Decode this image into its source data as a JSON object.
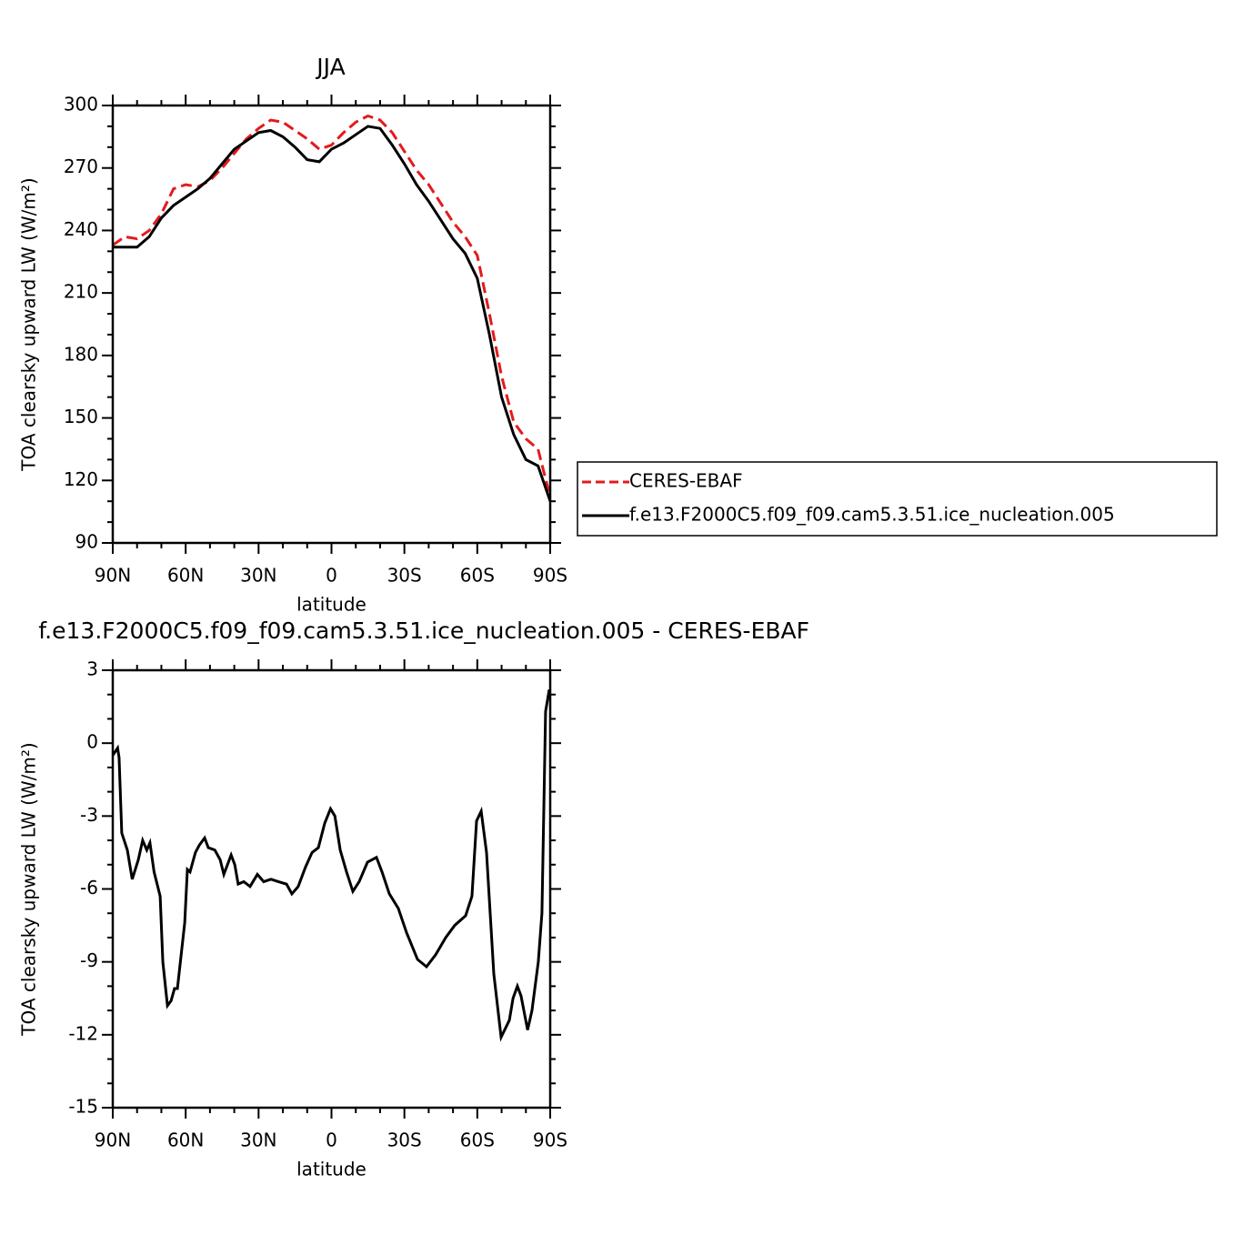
{
  "chart_data": [
    {
      "type": "line",
      "title": "JJA",
      "xlabel": "latitude",
      "ylabel": "TOA clearsky upward LW (W/m²)",
      "x": [
        90,
        85,
        80,
        75,
        70,
        65,
        60,
        55,
        50,
        45,
        40,
        35,
        30,
        25,
        20,
        15,
        10,
        5,
        0,
        -5,
        -10,
        -15,
        -20,
        -25,
        -30,
        -35,
        -40,
        -45,
        -50,
        -55,
        -60,
        -65,
        -70,
        -75,
        -80,
        -85,
        -90
      ],
      "series": [
        {
          "name": "CERES-EBAF",
          "color": "#e41a1c",
          "line_style": "dashed",
          "values": [
            233,
            237,
            236,
            240,
            248,
            260,
            262,
            261,
            264,
            270,
            277,
            284,
            289,
            293,
            292,
            288,
            284,
            279,
            281,
            287,
            292,
            295,
            293,
            287,
            278,
            269,
            262,
            253,
            244,
            237,
            228,
            200,
            170,
            148,
            140,
            135,
            112
          ]
        },
        {
          "name": "f.e13.F2000C5.f09_f09.cam5.3.51.ice_nucleation.005",
          "color": "#000000",
          "line_style": "solid",
          "values": [
            232,
            232,
            232,
            237,
            246,
            252,
            256,
            260,
            265,
            272,
            279,
            283,
            287,
            288,
            285,
            280,
            274,
            273,
            279,
            282,
            286,
            290,
            289,
            281,
            272,
            262,
            254,
            245,
            236,
            229,
            217,
            190,
            160,
            142,
            130,
            127,
            110
          ]
        }
      ],
      "xlim": [
        90,
        -90
      ],
      "xticks": [
        {
          "value": 90,
          "label": "90N"
        },
        {
          "value": 60,
          "label": "60N"
        },
        {
          "value": 30,
          "label": "30N"
        },
        0,
        {
          "value": -30,
          "label": "30S"
        },
        {
          "value": -60,
          "label": "60S"
        },
        {
          "value": -90,
          "label": "90S"
        }
      ],
      "ylim": [
        90,
        300
      ],
      "yticks": [
        90,
        120,
        150,
        180,
        210,
        240,
        270,
        300
      ]
    },
    {
      "type": "line",
      "title": "f.e13.F2000C5.f09_f09.cam5.3.51.ice_nucleation.005 - CERES-EBAF",
      "xlabel": "latitude",
      "ylabel": "TOA clearsky upward LW (W/m²)",
      "x": [
        90,
        88,
        87.4,
        86.3,
        84,
        82,
        79.5,
        77.7,
        76,
        74.7,
        73,
        70.5,
        69.4,
        67.5,
        66,
        64.6,
        63.4,
        60.4,
        59.3,
        58.2,
        56,
        54.4,
        52.2,
        50.7,
        48,
        45.8,
        44.3,
        41.3,
        39.8,
        38.4,
        36.1,
        33.5,
        30.5,
        27.9,
        24.9,
        21.9,
        18.5,
        16.3,
        13.7,
        10.7,
        8,
        5.4,
        2.8,
        0.4,
        -1.4,
        -3.6,
        -6.2,
        -8.8,
        -11.4,
        -14.8,
        -18.5,
        -20.8,
        -23.8,
        -27.5,
        -30.9,
        -35.4,
        -39.1,
        -42.9,
        -47,
        -50.7,
        -55.2,
        -57.8,
        -59.7,
        -61.6,
        -63.8,
        -66.8,
        -69.8,
        -73.2,
        -74.7,
        -76.5,
        -78,
        -80.7,
        -82.5,
        -85.1,
        -86.6,
        -88.1,
        -89.6
      ],
      "series": [
        {
          "color": "#000000",
          "line_style": "solid",
          "values": [
            -0.5,
            -0.2,
            -0.6,
            -3.7,
            -4.4,
            -5.6,
            -4.8,
            -4.0,
            -4.4,
            -4.1,
            -5.3,
            -6.3,
            -9.0,
            -10.8,
            -10.6,
            -10.1,
            -10.1,
            -7.4,
            -5.2,
            -5.3,
            -4.5,
            -4.2,
            -3.9,
            -4.3,
            -4.4,
            -4.8,
            -5.4,
            -4.6,
            -5.0,
            -5.8,
            -5.7,
            -5.9,
            -5.4,
            -5.7,
            -5.6,
            -5.7,
            -5.8,
            -6.2,
            -5.9,
            -5.1,
            -4.5,
            -4.3,
            -3.3,
            -2.7,
            -3.0,
            -4.4,
            -5.3,
            -6.1,
            -5.7,
            -4.9,
            -4.7,
            -5.3,
            -6.2,
            -6.8,
            -7.8,
            -8.9,
            -9.2,
            -8.7,
            -8.0,
            -7.5,
            -7.1,
            -6.3,
            -3.2,
            -2.8,
            -4.5,
            -9.5,
            -12.1,
            -11.4,
            -10.5,
            -10.0,
            -10.4,
            -11.8,
            -11.0,
            -9.0,
            -7.0,
            1.3,
            2.2
          ]
        }
      ],
      "xlim": [
        90,
        -90
      ],
      "xticks": [
        {
          "value": 90,
          "label": "90N"
        },
        {
          "value": 60,
          "label": "60N"
        },
        {
          "value": 30,
          "label": "30N"
        },
        0,
        {
          "value": -30,
          "label": "30S"
        },
        {
          "value": -60,
          "label": "60S"
        },
        {
          "value": -90,
          "label": "90S"
        }
      ],
      "ylim": [
        -15,
        3
      ],
      "yticks": [
        -15,
        -12,
        -9,
        -6,
        -3,
        0,
        3
      ]
    }
  ]
}
